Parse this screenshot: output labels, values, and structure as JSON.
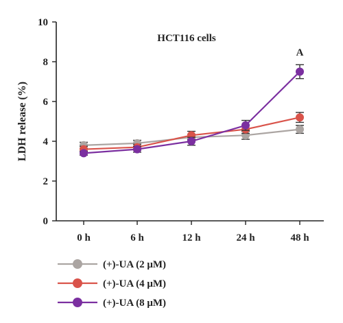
{
  "chart_data": {
    "type": "line",
    "title": "HCT116 cells",
    "xlabel": "",
    "ylabel": "LDH release (%)",
    "categories": [
      "0 h",
      "6 h",
      "12 h",
      "24 h",
      "48 h"
    ],
    "ylim": [
      0,
      10
    ],
    "yticks": [
      "0",
      "2",
      "4",
      "6",
      "8",
      "10"
    ],
    "grid": false,
    "legend_position": "bottom-left",
    "annotations": [
      {
        "text": "A",
        "category": "48 h"
      }
    ],
    "series": [
      {
        "name": "(+)-UA (2 μM)",
        "color": "#ABA5A2",
        "values": [
          3.8,
          3.9,
          4.2,
          4.3,
          4.6
        ],
        "errors": [
          0.15,
          0.15,
          0.15,
          0.2,
          0.2
        ]
      },
      {
        "name": "(+)-UA (4 μM)",
        "color": "#D9534A",
        "values": [
          3.6,
          3.7,
          4.3,
          4.6,
          5.2
        ],
        "errors": [
          0.15,
          0.15,
          0.2,
          0.2,
          0.25
        ]
      },
      {
        "name": "(+)-UA (8 μM)",
        "color": "#7B2FA0",
        "values": [
          3.4,
          3.6,
          4.0,
          4.8,
          7.5
        ],
        "errors": [
          0.1,
          0.15,
          0.2,
          0.25,
          0.35
        ]
      }
    ]
  }
}
